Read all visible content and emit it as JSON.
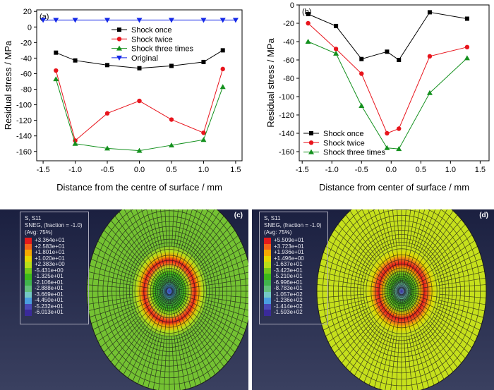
{
  "chart_data": [
    {
      "type": "line",
      "panel_label": "(a)",
      "xlabel": "Distance from the centre of surface / mm",
      "ylabel": "Residual stress / MPa",
      "xlim": [
        -1.6,
        1.6
      ],
      "ylim": [
        -172,
        22
      ],
      "xticks": [
        -1.5,
        -1.0,
        -0.5,
        0.0,
        0.5,
        1.0,
        1.5
      ],
      "xtick_labels": [
        "-1.5",
        "-1.0",
        "-0.5",
        "0.0",
        "0.5",
        "1.0",
        "1.5"
      ],
      "yticks": [
        20,
        0,
        -20,
        -40,
        -60,
        -80,
        -100,
        -120,
        -140,
        -160
      ],
      "ytick_labels": [
        "20",
        "0",
        "-20",
        "-40",
        "-60",
        "-80",
        "-100",
        "-120",
        "-140",
        "-160"
      ],
      "legend_position": "top-center",
      "series": [
        {
          "name": "Shock once",
          "color": "#000000",
          "marker": "square",
          "x": [
            -1.3,
            -1.0,
            -0.5,
            0.0,
            0.5,
            1.0,
            1.3
          ],
          "y": [
            -33,
            -43,
            -49,
            -53,
            -50,
            -45,
            -30
          ]
        },
        {
          "name": "Shock twice",
          "color": "#e8141c",
          "marker": "circle",
          "x": [
            -1.3,
            -1.0,
            -0.5,
            0.0,
            0.5,
            1.0,
            1.3
          ],
          "y": [
            -56,
            -146,
            -111,
            -95,
            -119,
            -136,
            -54
          ]
        },
        {
          "name": "Shock three times",
          "color": "#14901e",
          "marker": "triangle-up",
          "x": [
            -1.3,
            -1.0,
            -0.5,
            0.0,
            0.5,
            1.0,
            1.3
          ],
          "y": [
            -67,
            -150,
            -156,
            -159,
            -152,
            -145,
            -77
          ]
        },
        {
          "name": "Original",
          "color": "#1428e8",
          "marker": "triangle-down",
          "x": [
            -1.5,
            -1.3,
            -1.0,
            -0.5,
            0.0,
            0.5,
            1.0,
            1.3,
            1.5
          ],
          "y": [
            9,
            9,
            9,
            9,
            9,
            9,
            9,
            9,
            9
          ]
        }
      ]
    },
    {
      "type": "line",
      "panel_label": "(b)",
      "xlabel": "Distance from center of surface  / mm",
      "ylabel": "Residual stress / MPa",
      "xlim": [
        -1.55,
        1.65
      ],
      "ylim": [
        -170,
        0
      ],
      "xticks": [
        -1.5,
        -1.0,
        -0.5,
        0.0,
        0.5,
        1.0,
        1.5
      ],
      "xtick_labels": [
        "-1.5",
        "-1.0",
        "-0.5",
        "0.0",
        "0.5",
        "1.0",
        "1.5"
      ],
      "yticks": [
        0,
        -20,
        -40,
        -60,
        -80,
        -100,
        -120,
        -140,
        -160
      ],
      "ytick_labels": [
        "0",
        "-20",
        "-40",
        "-60",
        "-80",
        "-100",
        "-120",
        "-140",
        "-160"
      ],
      "legend_position": "bottom-left",
      "series": [
        {
          "name": "Shock once",
          "color": "#000000",
          "marker": "square",
          "x": [
            -1.4,
            -0.93,
            -0.5,
            -0.07,
            0.13,
            0.65,
            1.28
          ],
          "y": [
            -10,
            -23,
            -59,
            -51,
            -60,
            -8,
            -15
          ]
        },
        {
          "name": "Shock twice",
          "color": "#e8141c",
          "marker": "circle",
          "x": [
            -1.4,
            -0.93,
            -0.5,
            -0.07,
            0.13,
            0.65,
            1.28
          ],
          "y": [
            -20,
            -48,
            -75,
            -140,
            -135,
            -56,
            -46
          ]
        },
        {
          "name": "Shock three times",
          "color": "#14901e",
          "marker": "triangle-up",
          "x": [
            -1.4,
            -0.93,
            -0.5,
            -0.07,
            0.13,
            0.65,
            1.28
          ],
          "y": [
            -40,
            -53,
            -110,
            -156,
            -157,
            -96,
            -58
          ]
        }
      ]
    }
  ],
  "contours": [
    {
      "label": "(c)",
      "title1": "S, S11",
      "title2": "SNEG, (fraction = -1.0)",
      "title3": "(Avg: 75%)",
      "values": [
        "+3.364e+01",
        "+2.583e+01",
        "+1.801e+01",
        "+1.020e+01",
        "+2.383e+00",
        "-5.431e+00",
        "-1.325e+01",
        "-2.106e+01",
        "-2.888e+01",
        "-3.669e+01",
        "-4.450e+01",
        "-5.232e+01",
        "-6.013e+01"
      ],
      "outer_color": "#74c232"
    },
    {
      "label": "(d)",
      "title1": "S, S11",
      "title2": "SNEG, (fraction = -1.0)",
      "title3": "(Avg: 75%)",
      "values": [
        "+5.509e+01",
        "+3.723e+01",
        "+1.936e+01",
        "+1.496e+00",
        "-1.637e+01",
        "-3.423e+01",
        "-5.210e+01",
        "-6.996e+01",
        "-8.783e+01",
        "-1.057e+02",
        "-1.236e+02",
        "-1.414e+02",
        "-1.593e+02"
      ],
      "outer_color": "#c6e01c"
    }
  ],
  "legend_colors": [
    "#e41a1c",
    "#f2641a",
    "#f5a800",
    "#e5d700",
    "#b8de1a",
    "#74c81a",
    "#3cb81a",
    "#40b44c",
    "#62c07c",
    "#74c8c4",
    "#4a9ee0",
    "#4a4ab8",
    "#3a2a9a"
  ]
}
